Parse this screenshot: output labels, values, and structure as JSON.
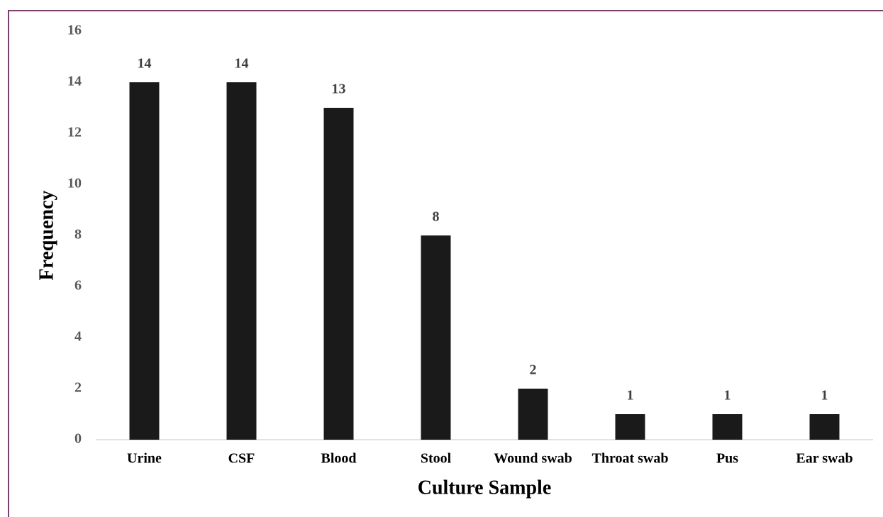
{
  "chart_data": {
    "type": "bar",
    "x_label": "Culture Sample",
    "y_label": "Frequency",
    "categories": [
      "Urine",
      "CSF",
      "Blood",
      "Stool",
      "Wound swab",
      "Throat swab",
      "Pus",
      "Ear swab"
    ],
    "values": [
      14,
      14,
      13,
      8,
      2,
      1,
      1,
      1
    ],
    "color": "#1a1a1a",
    "ylim": [
      0,
      16
    ],
    "yticks": [
      0,
      2,
      4,
      6,
      8,
      10,
      12,
      14,
      16
    ],
    "grid": false,
    "data_labels": true
  }
}
